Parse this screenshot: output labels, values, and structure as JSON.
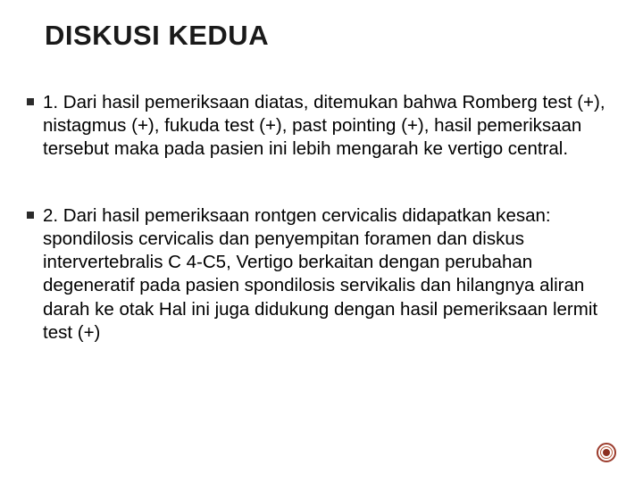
{
  "colors": {
    "background": "#ffffff",
    "title": "#1a1a1a",
    "body_text": "#000000",
    "bullet": "#2b2b2b",
    "ornament_outer_border": "#9c3d2e",
    "ornament_mid_border": "#b85c3f",
    "ornament_dot": "#8c2f20"
  },
  "typography": {
    "title_fontsize": 31,
    "title_weight": 700,
    "body_fontsize": 20.5,
    "body_weight": 400
  },
  "title": "DISKUSI KEDUA",
  "bullets": [
    {
      "text": "1. Dari hasil pemeriksaan diatas, ditemukan bahwa Romberg test (+), nistagmus (+), fukuda test (+), past pointing (+), hasil pemeriksaan tersebut maka pada pasien ini lebih mengarah ke vertigo central."
    },
    {
      "text": "2. Dari hasil pemeriksaan rontgen cervicalis didapatkan kesan: spondilosis cervicalis dan penyempitan foramen dan diskus intervertebralis C 4-C5, Vertigo berkaitan dengan perubahan degeneratif pada pasien spondilosis servikalis dan hilangnya aliran darah ke otak Hal ini juga didukung dengan hasil pemeriksaan lermit test (+)"
    }
  ]
}
